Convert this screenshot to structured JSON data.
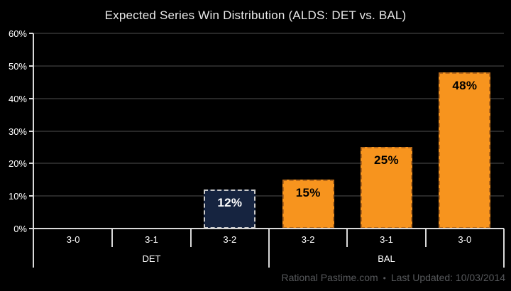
{
  "title": "Expected Series Win Distribution (ALDS: DET vs. BAL)",
  "footer": {
    "site": "Rational Pastime.com",
    "separator": "•",
    "updated": "Last Updated: 10/03/2014"
  },
  "colors": {
    "background": "#000000",
    "det_bar_fill": "#162440",
    "det_bar_border": "#c9c9c9",
    "det_label": "#ffffff",
    "bal_bar_fill": "#f7941e",
    "bal_bar_border": "#b5681a",
    "bal_label": "#000000",
    "axis": "#d9d9d9",
    "gridline": "#282828",
    "axis_text": "#ffffff",
    "footer_text": "#56585b"
  },
  "chart_data": {
    "type": "bar",
    "title": "Expected Series Win Distribution (ALDS: DET vs. BAL)",
    "xlabel": "",
    "ylabel": "",
    "ylim": [
      0,
      60
    ],
    "ytick_step": 10,
    "ytick_suffix": "%",
    "grid": true,
    "legend": "none",
    "groups": [
      {
        "name": "DET",
        "categories": [
          "3-0",
          "3-1",
          "3-2"
        ],
        "values": [
          0,
          0,
          12
        ],
        "bar_fill": "#162440",
        "bar_border": "#c9c9c9",
        "label_color": "#ffffff"
      },
      {
        "name": "BAL",
        "categories": [
          "3-2",
          "3-1",
          "3-0"
        ],
        "values": [
          15,
          25,
          48
        ],
        "bar_fill": "#f7941e",
        "bar_border": "#b5681a",
        "label_color": "#000000"
      }
    ]
  }
}
